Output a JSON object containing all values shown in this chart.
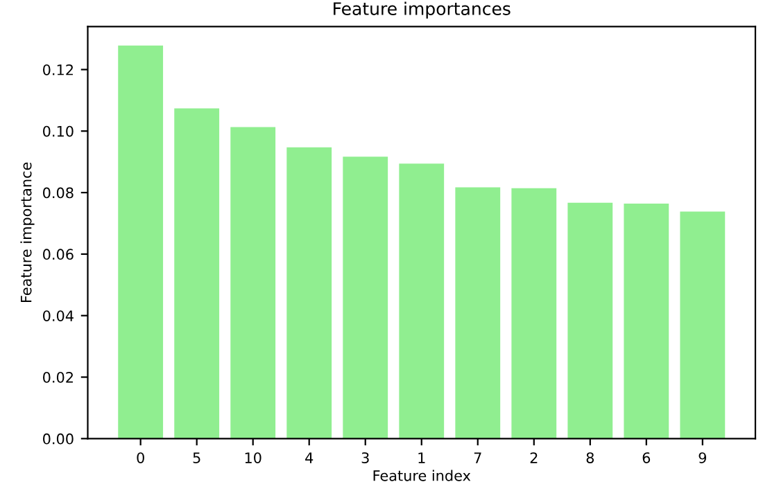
{
  "chart_data": {
    "type": "bar",
    "title": "Feature importances",
    "xlabel": "Feature index",
    "ylabel": "Feature importance",
    "categories": [
      "0",
      "5",
      "10",
      "4",
      "3",
      "1",
      "7",
      "2",
      "8",
      "6",
      "9"
    ],
    "values": [
      0.1278,
      0.1074,
      0.1013,
      0.0947,
      0.0917,
      0.0894,
      0.0817,
      0.0814,
      0.0767,
      0.0764,
      0.0738
    ],
    "color": "#90ee90",
    "ylim": [
      0,
      0.134
    ],
    "yticks": [
      {
        "value": 0,
        "label": "0.00"
      },
      {
        "value": 0.02,
        "label": "0.02"
      },
      {
        "value": 0.04,
        "label": "0.04"
      },
      {
        "value": 0.06,
        "label": "0.06"
      },
      {
        "value": 0.08,
        "label": "0.08"
      },
      {
        "value": 0.1,
        "label": "0.10"
      },
      {
        "value": 0.12,
        "label": "0.12"
      }
    ],
    "grid": false
  }
}
